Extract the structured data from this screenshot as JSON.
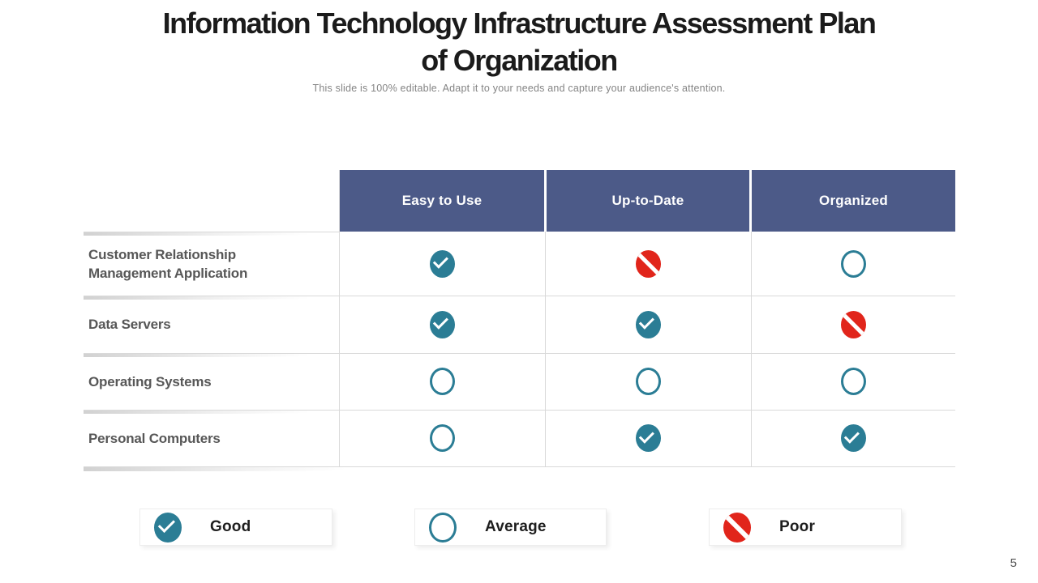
{
  "slide": {
    "title_line1": "Information Technology Infrastructure Assessment Plan",
    "title_line2": "of Organization",
    "subtitle": "This slide is 100% editable. Adapt it to your needs and capture your audience's attention.",
    "page_number": "5"
  },
  "colors": {
    "header_bg": "#4C5A88",
    "good_teal": "#2B7D95",
    "poor_red": "#E1251B",
    "grid_line": "#D9D9D9",
    "row_label_text": "#575757"
  },
  "table": {
    "columns": [
      "Easy to Use",
      "Up-to-Date",
      "Organized"
    ],
    "rows": [
      {
        "label": "Customer Relationship Management Application",
        "ratings": [
          "good",
          "poor",
          "average"
        ]
      },
      {
        "label": "Data Servers",
        "ratings": [
          "good",
          "good",
          "poor"
        ]
      },
      {
        "label": "Operating Systems",
        "ratings": [
          "average",
          "average",
          "average"
        ]
      },
      {
        "label": "Personal Computers",
        "ratings": [
          "average",
          "good",
          "good"
        ]
      }
    ]
  },
  "legend": [
    {
      "rating": "good",
      "label": "Good"
    },
    {
      "rating": "average",
      "label": "Average"
    },
    {
      "rating": "poor",
      "label": "Poor"
    }
  ]
}
